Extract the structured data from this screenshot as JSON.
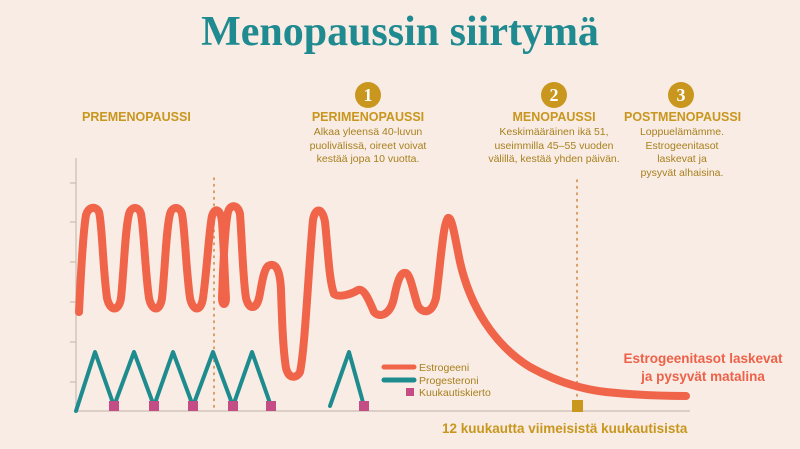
{
  "title": "Menopaussin siirtymä",
  "colors": {
    "title": "#1f8a8f",
    "accent_gold": "#c9961e",
    "estrogen": "#f0644a",
    "progesterone": "#1e8b8e",
    "cycle": "#c44d86",
    "background": "#f8ece4"
  },
  "phases": [
    {
      "badge": "",
      "title": "PREMENOPAUSSI",
      "description": []
    },
    {
      "badge": "1",
      "title": "PERIMENOPAUSSI",
      "description": [
        "Alkaa yleensä 40-luvun",
        "puolivälissä, oireet voivat",
        "kestää jopa 10 vuotta."
      ]
    },
    {
      "badge": "2",
      "title": "MENOPAUSSI",
      "description": [
        "Keskimääräinen ikä 51,",
        "useimmilla 45–55 vuoden",
        "välillä, kestää yhden päivän."
      ]
    },
    {
      "badge": "3",
      "title": "POSTMENOPAUSSI",
      "description": [
        "Loppuelämämme.",
        "Estrogeenitasot",
        "laskevat ja",
        "pysyvät alhaisina."
      ]
    }
  ],
  "legend": [
    {
      "label": "Estrogeeni",
      "key": "estrogen"
    },
    {
      "label": "Progesteroni",
      "key": "progesterone"
    },
    {
      "label": "Kuukautiskierto",
      "key": "cycle"
    }
  ],
  "estrogen_note": [
    "Estrogeenitasot laskevat",
    "ja pysyvät matalina"
  ],
  "x_caption": "12 kuukautta viimeisistä kuukautisista"
}
